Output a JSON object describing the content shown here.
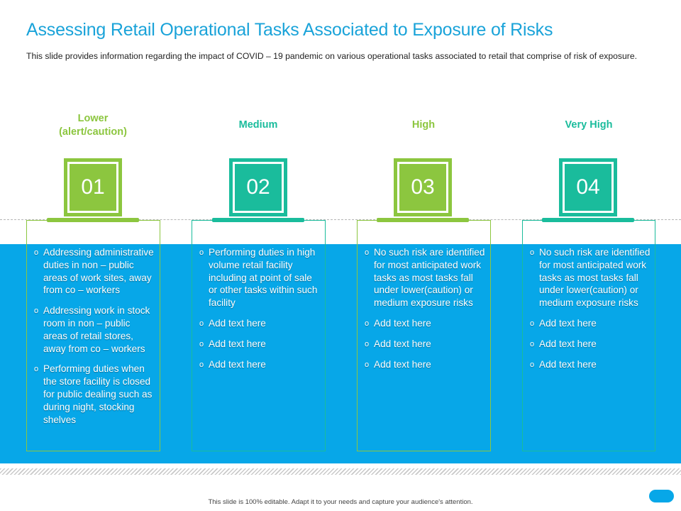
{
  "header": {
    "title": "Assessing Retail Operational Tasks Associated to Exposure of Risks",
    "subtitle": "This slide provides information regarding the impact of COVID – 19 pandemic on various operational tasks associated to retail that comprise of risk of exposure."
  },
  "colors": {
    "green": "#8cc63f",
    "teal": "#1abc9c",
    "blue": "#07a7e8"
  },
  "columns": [
    {
      "level_line1": "Lower",
      "level_line2": "(alert/caution)",
      "number": "01",
      "items": [
        "Addressing administrative duties in non – public areas of work sites, away from co – workers",
        " Addressing work in stock room in non – public areas of retail stores, away from co – workers",
        "Performing duties when the store facility is closed for public dealing such as during night, stocking shelves"
      ]
    },
    {
      "level_line1": "Medium",
      "level_line2": "",
      "number": "02",
      "items": [
        "Performing duties in high volume retail facility including at point of sale or other tasks within such facility",
        "Add text here",
        "Add text here",
        "Add text here"
      ]
    },
    {
      "level_line1": "High",
      "level_line2": "",
      "number": "03",
      "items": [
        "No such risk are identified for most anticipated work tasks as most tasks fall under lower(caution) or medium exposure risks",
        "Add text here",
        "Add text here",
        "Add text here"
      ]
    },
    {
      "level_line1": "Very High",
      "level_line2": "",
      "number": "04",
      "items": [
        "No such risk are identified for most anticipated work tasks as most tasks fall under lower(caution) or medium exposure risks",
        "Add text here",
        "Add text here",
        "Add text here"
      ]
    }
  ],
  "bullet_glyph": "o",
  "footer": {
    "note": "This slide is 100% editable. Adapt it to your needs and capture your audience's attention."
  }
}
